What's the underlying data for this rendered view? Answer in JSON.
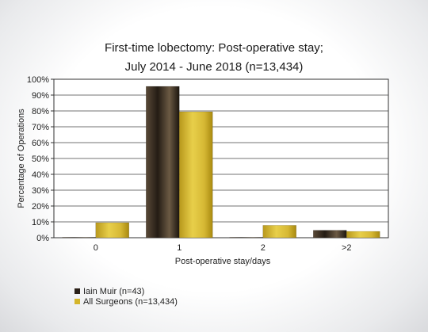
{
  "chart_data": {
    "type": "bar",
    "title": "First-time lobectomy: Post-operative stay;",
    "subtitle": "July 2014 - June 2018 (n=13,434)",
    "xlabel": "Post-operative stay/days",
    "ylabel": "Percentage of Operations",
    "categories": [
      "0",
      "1",
      "2",
      ">2"
    ],
    "series": [
      {
        "name": "Iain Muir (n=43)",
        "values": [
          0.3,
          95.5,
          0.3,
          4.7
        ],
        "color": "#2a2018"
      },
      {
        "name": "All Surgeons (n=13,434)",
        "values": [
          9.5,
          79.5,
          7.8,
          4.0
        ],
        "color": "#d4b52a"
      }
    ],
    "ylim": [
      0,
      100
    ],
    "yticks": [
      "0%",
      "10%",
      "20%",
      "30%",
      "40%",
      "50%",
      "60%",
      "70%",
      "80%",
      "90%",
      "100%"
    ],
    "grid": true,
    "legend_position": "bottom-left"
  }
}
